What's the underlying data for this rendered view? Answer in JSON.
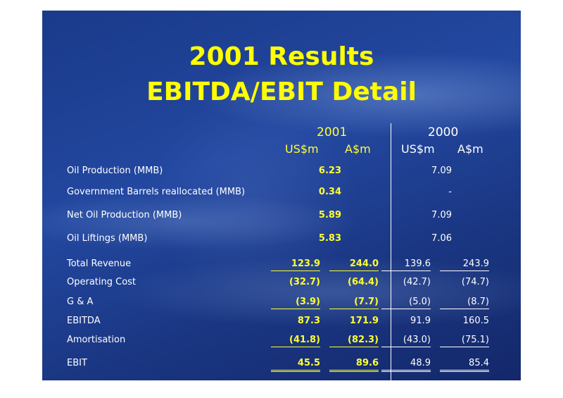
{
  "title": {
    "line1": "2001 Results",
    "line2": "EBITDA/EBIT Detail"
  },
  "columns": {
    "years": [
      "2001",
      "2000"
    ],
    "units": [
      "US$m",
      "A$m",
      "US$m",
      "A$m"
    ]
  },
  "volume_rows": [
    {
      "label": "Oil Production (MMB)",
      "v2001": "6.23",
      "v2000": "7.09"
    },
    {
      "label": "Government Barrels reallocated (MMB)",
      "v2001": "0.34",
      "v2000": "-"
    },
    {
      "label": "Net Oil Production (MMB)",
      "v2001": "5.89",
      "v2000": "7.09"
    },
    {
      "label": "Oil Liftings (MMB)",
      "v2001": "5.83",
      "v2000": "7.06"
    }
  ],
  "financial_rows": [
    {
      "label": "Total Revenue",
      "values": [
        "123.9",
        "244.0",
        "139.6",
        "243.9"
      ]
    },
    {
      "label": "Operating Cost",
      "values": [
        "(32.7)",
        "(64.4)",
        "(42.7)",
        "(74.7)"
      ]
    },
    {
      "label": "G & A",
      "values": [
        "(3.9)",
        "(7.7)",
        "(5.0)",
        "(8.7)"
      ]
    },
    {
      "label": "EBITDA",
      "values": [
        "87.3",
        "171.9",
        "91.9",
        "160.5"
      ]
    },
    {
      "label": "Amortisation",
      "values": [
        "(41.8)",
        "(82.3)",
        "(43.0)",
        "(75.1)"
      ]
    },
    {
      "label": "EBIT",
      "values": [
        "45.5",
        "89.6",
        "48.9",
        "85.4"
      ]
    }
  ]
}
